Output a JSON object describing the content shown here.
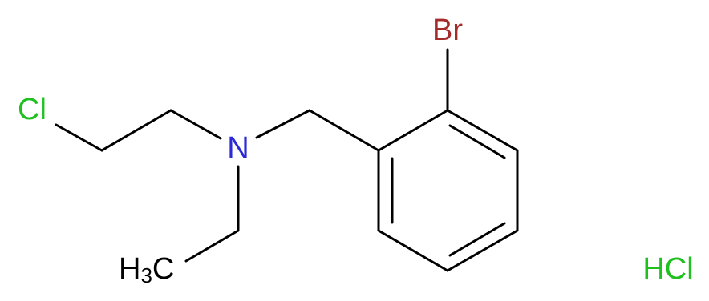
{
  "atoms": {
    "chlorine": "Cl",
    "nitrogen": "N",
    "bromine": "Br",
    "methyl": {
      "h": "H",
      "subscript": "3",
      "c": "C"
    },
    "salt": "HCl"
  }
}
